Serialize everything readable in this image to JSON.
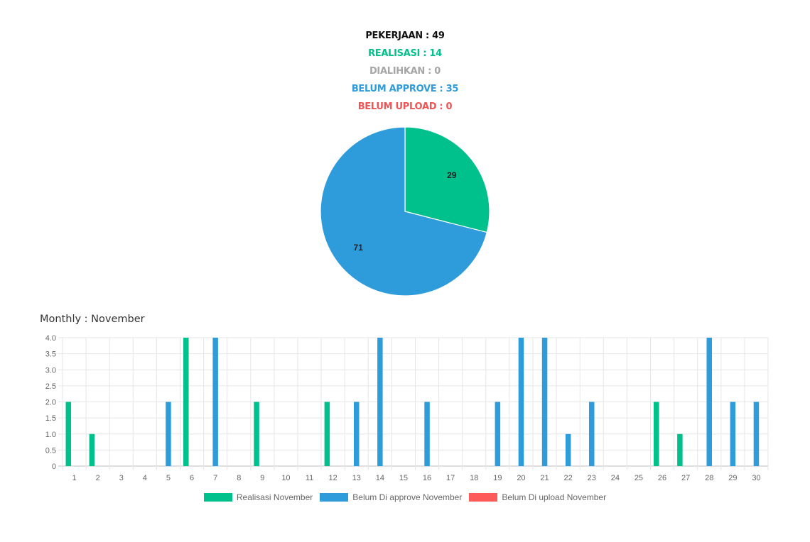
{
  "summary": {
    "pekerjaan": "PEKERJAAN : 49",
    "realisasi": "REALISASI : 14",
    "dialihkan": "DIALIHKAN : 0",
    "belum_approve": "BELUM APPROVE : 35",
    "belum_upload": "BELUM UPLOAD : 0"
  },
  "colors": {
    "realisasi": "#00c08b",
    "belum_approve": "#2e9cdb",
    "belum_upload": "#ff5a5a",
    "dialihkan": "#a6a6a6"
  },
  "chart_data": [
    {
      "type": "pie",
      "slices": [
        {
          "label": "29",
          "value": 29,
          "color": "#00c08b"
        },
        {
          "label": "71",
          "value": 71,
          "color": "#2e9cdb"
        }
      ]
    },
    {
      "type": "bar",
      "title": "Monthly : November",
      "categories": [
        "1",
        "2",
        "3",
        "4",
        "5",
        "6",
        "7",
        "8",
        "9",
        "10",
        "11",
        "12",
        "13",
        "14",
        "15",
        "16",
        "17",
        "18",
        "19",
        "20",
        "21",
        "22",
        "23",
        "24",
        "25",
        "26",
        "27",
        "28",
        "29",
        "30"
      ],
      "series": [
        {
          "name": "Realisasi November",
          "color": "#00c08b",
          "values": [
            2,
            1,
            0,
            0,
            0,
            4,
            0,
            0,
            2,
            0,
            0,
            2,
            0,
            0,
            0,
            0,
            0,
            0,
            0,
            0,
            0,
            0,
            0,
            0,
            0,
            2,
            1,
            0,
            0,
            0
          ]
        },
        {
          "name": "Belum Di approve November",
          "color": "#2e9cdb",
          "values": [
            0,
            0,
            0,
            0,
            2,
            0,
            4,
            0,
            0,
            0,
            0,
            0,
            2,
            4,
            0,
            2,
            0,
            0,
            2,
            4,
            4,
            1,
            2,
            0,
            0,
            0,
            0,
            4,
            2,
            2
          ]
        },
        {
          "name": "Belum Di upload November",
          "color": "#ff5a5a",
          "values": [
            0,
            0,
            0,
            0,
            0,
            0,
            0,
            0,
            0,
            0,
            0,
            0,
            0,
            0,
            0,
            0,
            0,
            0,
            0,
            0,
            0,
            0,
            0,
            0,
            0,
            0,
            0,
            0,
            0,
            0
          ]
        }
      ],
      "yticks": [
        "0",
        "0.5",
        "1.0",
        "1.5",
        "2.0",
        "2.5",
        "3.0",
        "3.5",
        "4.0"
      ],
      "ylim": [
        0,
        4
      ],
      "grid": true,
      "legend": "bottom"
    }
  ]
}
